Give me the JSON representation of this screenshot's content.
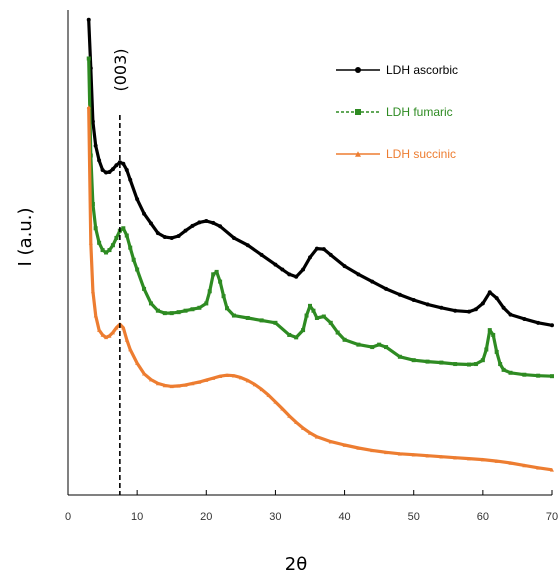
{
  "chart_data": {
    "type": "line",
    "title": "",
    "xlabel": "2θ",
    "ylabel": "I (a.u.)",
    "xlim": [
      0,
      70
    ],
    "ylim": [
      0,
      100
    ],
    "x_ticks": [
      0,
      10,
      20,
      30,
      40,
      50,
      60,
      70
    ],
    "y_ticks_shown": false,
    "grid": false,
    "legend_position": "top-right",
    "annotation": {
      "label": "(003)",
      "x": 7.5
    },
    "series": [
      {
        "name": "LDH ascorbic",
        "color": "#000000",
        "marker": "circle",
        "x": [
          3,
          3.3,
          3.6,
          4,
          4.5,
          5,
          5.5,
          6,
          6.5,
          7,
          7.5,
          8,
          8.5,
          9,
          10,
          11,
          12,
          13,
          14,
          15,
          16,
          17,
          18,
          19,
          20,
          21,
          22,
          24,
          26,
          28,
          30,
          31,
          32,
          33,
          34,
          35,
          36,
          37,
          38,
          40,
          42,
          44,
          46,
          48,
          50,
          52,
          54,
          56,
          58,
          59,
          60,
          61,
          62,
          63,
          64,
          66,
          68,
          70
        ],
        "values": [
          98,
          88,
          77,
          72,
          69,
          67,
          66.5,
          66.6,
          67.2,
          68,
          68.6,
          68.3,
          67,
          65,
          61,
          58,
          56,
          54,
          53.2,
          53,
          53.4,
          54.5,
          55.5,
          56.2,
          56.5,
          56.1,
          55.4,
          53,
          51.5,
          49.5,
          47.5,
          46.5,
          45.5,
          45,
          46.5,
          49,
          50.8,
          50.7,
          49.5,
          47.2,
          45.5,
          44,
          42.5,
          41.3,
          40.2,
          39.3,
          38.6,
          38,
          37.8,
          38.3,
          39.5,
          41.8,
          40.6,
          38.6,
          37.2,
          36.3,
          35.5,
          35
        ]
      },
      {
        "name": "LDH fumaric",
        "color": "#2e8b22",
        "marker": "square",
        "x": [
          3,
          3.3,
          3.6,
          4,
          4.5,
          5,
          5.5,
          6,
          6.5,
          7,
          7.5,
          8,
          8.5,
          9,
          9.5,
          10,
          11,
          12,
          13,
          14,
          15,
          16,
          17,
          18,
          19,
          20,
          20.5,
          21,
          21.5,
          22,
          22.5,
          23,
          24,
          26,
          28,
          30,
          32,
          33,
          34,
          34.5,
          35,
          35.5,
          36,
          37,
          38,
          39,
          40,
          42,
          44,
          45,
          46,
          48,
          50,
          52,
          54,
          56,
          58,
          59,
          60,
          60.5,
          61,
          61.5,
          62,
          62.5,
          63,
          64,
          66,
          68,
          70
        ],
        "values": [
          90,
          70,
          60,
          55,
          52,
          50.5,
          50,
          50.5,
          51.5,
          53,
          54.5,
          55,
          53.5,
          51,
          48.5,
          46.5,
          42.5,
          39.5,
          38,
          37.5,
          37.5,
          37.7,
          38,
          38.3,
          38.6,
          39.5,
          42,
          45.5,
          46,
          44,
          41,
          38.5,
          37,
          36.5,
          36,
          35.5,
          33,
          32.5,
          34,
          37,
          39,
          38,
          36.5,
          36.8,
          35.5,
          33.5,
          32,
          31,
          30.5,
          31,
          30.5,
          28.5,
          27.8,
          27.5,
          27.3,
          27,
          26.9,
          27,
          27.8,
          30,
          34,
          33,
          29.5,
          27,
          25.8,
          25.2,
          24.8,
          24.6,
          24.5
        ]
      },
      {
        "name": "LDH succinic",
        "color": "#ed7d31",
        "marker": "triangle",
        "x": [
          3,
          3.3,
          3.6,
          4,
          4.5,
          5,
          5.5,
          6,
          6.5,
          7,
          7.5,
          8,
          8.5,
          9,
          10,
          11,
          12,
          13,
          14,
          15,
          16,
          17,
          18,
          19,
          20,
          21,
          22,
          23,
          24,
          25,
          26,
          27,
          28,
          29,
          30,
          31,
          32,
          33,
          34,
          35,
          36,
          38,
          40,
          42,
          44,
          46,
          48,
          50,
          52,
          54,
          56,
          58,
          60,
          62,
          64,
          66,
          68,
          70
        ],
        "values": [
          80,
          52,
          42,
          37,
          34,
          33,
          32.5,
          32.8,
          33.5,
          34.5,
          35.2,
          34.5,
          32,
          30,
          27.2,
          25,
          23.8,
          23,
          22.6,
          22.4,
          22.5,
          22.7,
          23,
          23.3,
          23.7,
          24.1,
          24.5,
          24.7,
          24.6,
          24.2,
          23.6,
          22.8,
          21.8,
          20.6,
          19.2,
          17.8,
          16.3,
          15,
          13.8,
          12.8,
          12,
          11,
          10.3,
          9.7,
          9.2,
          8.8,
          8.5,
          8.3,
          8.1,
          7.9,
          7.7,
          7.5,
          7.3,
          7,
          6.6,
          6.1,
          5.6,
          5.2
        ]
      }
    ]
  }
}
